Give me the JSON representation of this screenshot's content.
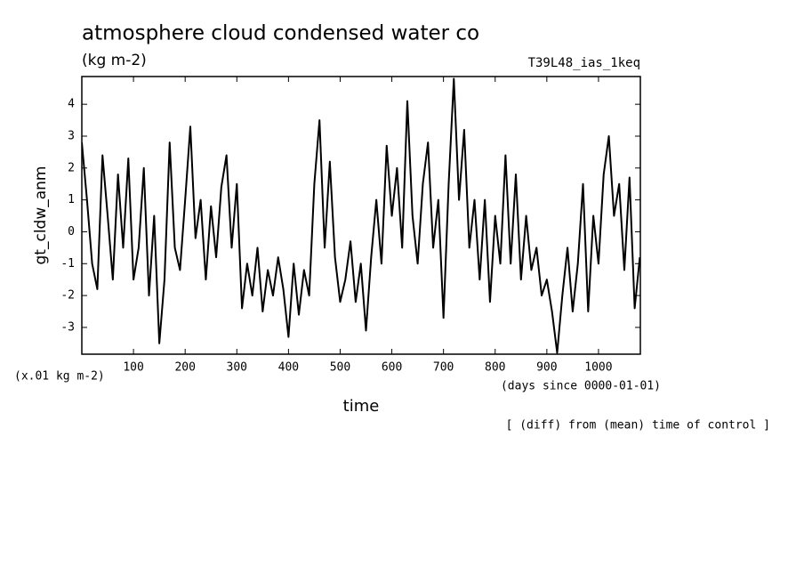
{
  "chart_data": {
    "type": "line",
    "title": "atmosphere cloud condensed water co",
    "subtitle": "(kg m-2)",
    "experiment": "T39L48_ias_1keq",
    "y_label": "gt_cldw_anm",
    "x_label": "time",
    "y_unit": "(x.01 kg m-2)",
    "x_unit": "(days since 0000-01-01)",
    "note": "[ (diff) from (mean) time of control ]",
    "color": "#000000",
    "x": [
      0,
      10,
      20,
      30,
      40,
      50,
      60,
      70,
      80,
      90,
      100,
      110,
      120,
      130,
      140,
      150,
      160,
      170,
      180,
      190,
      200,
      210,
      220,
      230,
      240,
      250,
      260,
      270,
      280,
      290,
      300,
      310,
      320,
      330,
      340,
      350,
      360,
      370,
      380,
      390,
      400,
      410,
      420,
      430,
      440,
      450,
      460,
      470,
      480,
      490,
      500,
      510,
      520,
      530,
      540,
      550,
      560,
      570,
      580,
      590,
      600,
      610,
      620,
      630,
      640,
      650,
      660,
      670,
      680,
      690,
      700,
      710,
      720,
      730,
      740,
      750,
      760,
      770,
      780,
      790,
      800,
      810,
      820,
      830,
      840,
      850,
      860,
      870,
      880,
      890,
      900,
      910,
      920,
      930,
      940,
      950,
      960,
      970,
      980,
      990,
      1000,
      1010,
      1020,
      1030,
      1040,
      1050,
      1060,
      1070,
      1080
    ],
    "values": [
      2.8,
      1.0,
      -1.0,
      -1.8,
      2.4,
      0.5,
      -1.5,
      1.8,
      -0.5,
      2.3,
      -1.5,
      -0.5,
      2.0,
      -2.0,
      0.5,
      -3.5,
      -1.5,
      2.8,
      -0.5,
      -1.2,
      1.0,
      3.3,
      -0.2,
      1.0,
      -1.5,
      0.8,
      -0.8,
      1.4,
      2.4,
      -0.5,
      1.5,
      -2.4,
      -1.0,
      -2.0,
      -0.5,
      -2.5,
      -1.2,
      -2.0,
      -0.8,
      -1.8,
      -3.3,
      -1.0,
      -2.6,
      -1.2,
      -2.0,
      1.5,
      3.5,
      -0.5,
      2.2,
      -0.8,
      -2.2,
      -1.5,
      -0.3,
      -2.2,
      -1.0,
      -3.1,
      -0.8,
      1.0,
      -1.0,
      2.7,
      0.5,
      2.0,
      -0.5,
      4.1,
      0.5,
      -1.0,
      1.5,
      2.8,
      -0.5,
      1.0,
      -2.7,
      1.5,
      4.8,
      1.0,
      3.2,
      -0.5,
      1.0,
      -1.5,
      1.0,
      -2.2,
      0.5,
      -1.0,
      2.4,
      -1.0,
      1.8,
      -1.5,
      0.5,
      -1.2,
      -0.5,
      -2.0,
      -1.5,
      -2.5,
      -3.8,
      -2.0,
      -0.5,
      -2.5,
      -1.0,
      1.5,
      -2.5,
      0.5,
      -1.0,
      1.8,
      3.0,
      0.5,
      1.5,
      -1.2,
      1.7,
      -2.4,
      -0.8
    ],
    "xlim": [
      0,
      1081
    ],
    "ylim": [
      -3.84,
      4.87
    ],
    "xticks": [
      100,
      200,
      300,
      400,
      500,
      600,
      700,
      800,
      900,
      1000
    ],
    "yticks": [
      -3,
      -2,
      -1,
      0,
      1,
      2,
      3,
      4
    ]
  }
}
